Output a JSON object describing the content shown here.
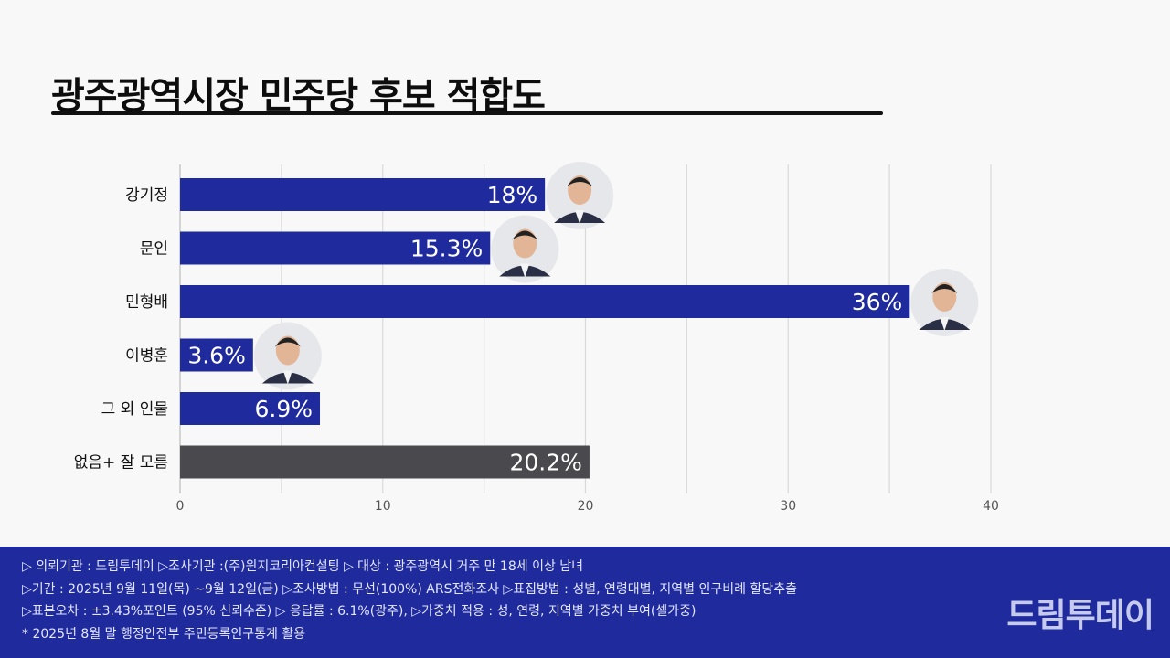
{
  "title": "광주광역시장  민주당 후보 적합도",
  "colors": {
    "bar": "#1f2a9c",
    "bar_other": "#4a4a4e",
    "footer_bg": "#1f2a9c",
    "grid": "#d9d9d9"
  },
  "chart_data": {
    "type": "bar",
    "orientation": "horizontal",
    "categories": [
      "강기정",
      "문인",
      "민형배",
      "이병훈",
      "그 외 인물",
      "없음+ 잘 모름"
    ],
    "values": [
      18,
      15.3,
      36,
      3.6,
      6.9,
      20.2
    ],
    "data_labels": [
      "18%",
      "15.3%",
      "36%",
      "3.6%",
      "6.9%",
      "20.2%"
    ],
    "xlim": [
      0,
      40
    ],
    "ticks": [
      0,
      10,
      20,
      30,
      40
    ],
    "grid": true,
    "avatars": [
      "person-photo",
      "person-photo",
      "person-photo",
      "person-photo",
      "",
      ""
    ]
  },
  "footer": {
    "lines": [
      "▷ 의뢰기관 : 드림투데이  ▷조사기관 :(주)윈지코리아컨설팅  ▷ 대상 : 광주광역시 거주 만 18세 이상 남녀",
      "▷기간 : 2025년 9월 11일(목) ~9월 12일(금) ▷조사방법 : 무선(100%) ARS전화조사 ▷표집방법 : 성별, 연령대별, 지역별  인구비례 할당추출",
      "▷표본오차 : ±3.43%포인트 (95% 신뢰수준)  ▷ 응답률 : 6.1%(광주), ▷가중치 적용 : 성, 연령, 지역별 가중치 부여(셀가중)",
      "* 2025년 8월 말 행정안전부 주민등록인구통계 활용"
    ],
    "brand": "드림투데이"
  }
}
